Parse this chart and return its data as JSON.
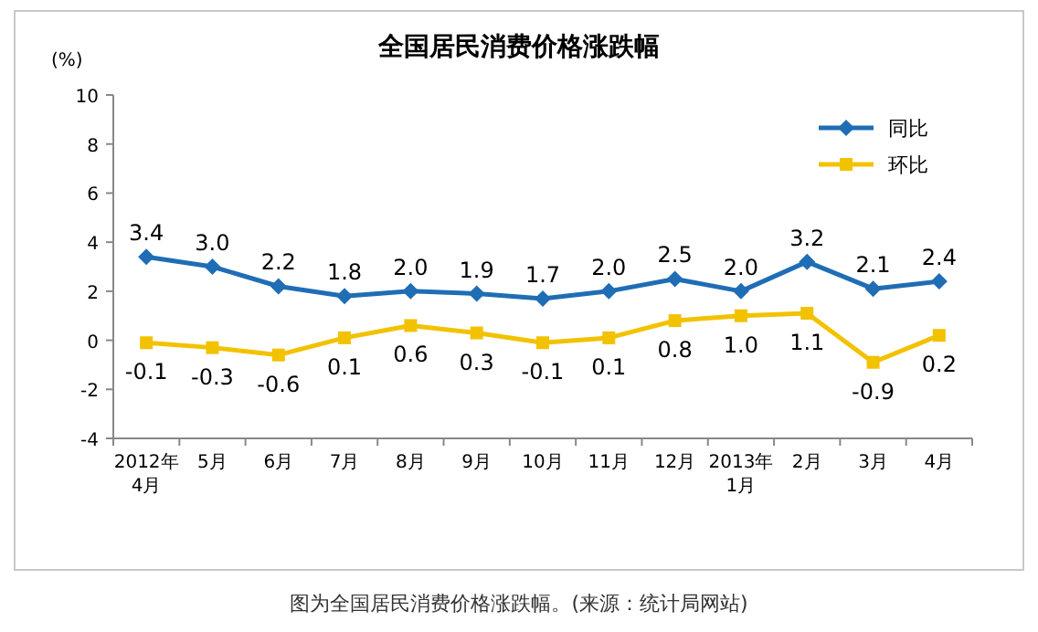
{
  "chart_data": {
    "type": "line",
    "title": "全国居民消费价格涨跌幅",
    "ylabel": "(%)",
    "categories": [
      "2012年\n4月",
      "5月",
      "6月",
      "7月",
      "8月",
      "9月",
      "10月",
      "11月",
      "12月",
      "2013年\n1月",
      "2月",
      "3月",
      "4月"
    ],
    "series": [
      {
        "name": "同比",
        "color": "#1f6db5",
        "marker": "diamond",
        "values": [
          3.4,
          3.0,
          2.2,
          1.8,
          2.0,
          1.9,
          1.7,
          2.0,
          2.5,
          2.0,
          3.2,
          2.1,
          2.4
        ],
        "value_labels": [
          "3.4",
          "3.0",
          "2.2",
          "1.8",
          "2.0",
          "1.9",
          "1.7",
          "2.0",
          "2.5",
          "2.0",
          "3.2",
          "2.1",
          "2.4"
        ]
      },
      {
        "name": "环比",
        "color": "#f2c200",
        "marker": "square",
        "values": [
          -0.1,
          -0.3,
          -0.6,
          0.1,
          0.6,
          0.3,
          -0.1,
          0.1,
          0.8,
          1.0,
          1.1,
          -0.9,
          0.2
        ],
        "value_labels": [
          "-0.1",
          "-0.3",
          "-0.6",
          "0.1",
          "0.6",
          "0.3",
          "-0.1",
          "0.1",
          "0.8",
          "1.0",
          "1.1",
          "-0.9",
          "0.2"
        ]
      }
    ],
    "ylim": [
      -4,
      10
    ],
    "yticks": [
      -4,
      -2,
      0,
      2,
      4,
      6,
      8,
      10
    ],
    "legend": "top right",
    "grid": false,
    "annotations": [
      "图为全国居民消费价格涨跌幅。(来源：统计局网站)"
    ]
  }
}
